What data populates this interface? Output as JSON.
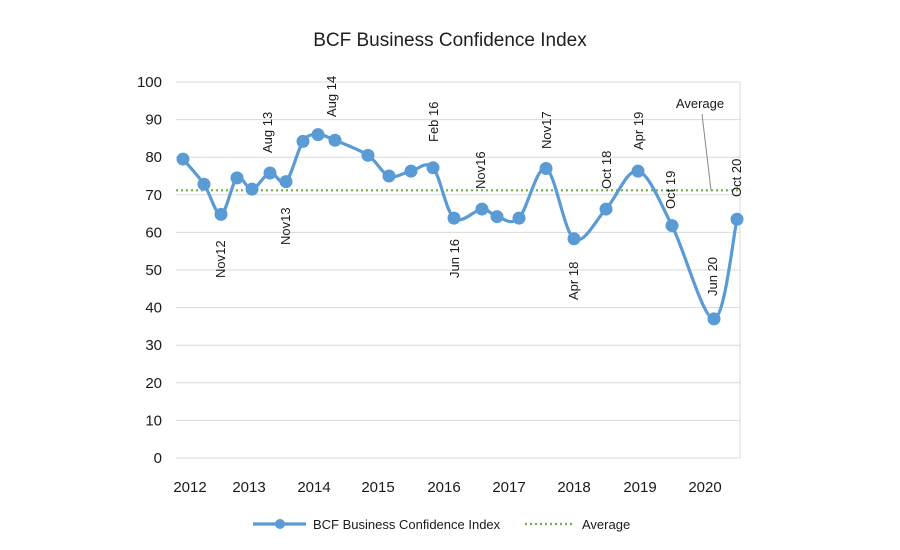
{
  "chart_data": {
    "type": "line",
    "title": "BCF Business Confidence Index",
    "xlabel": "",
    "ylabel": "",
    "ylim": [
      0,
      100
    ],
    "yticks": [
      0,
      10,
      20,
      30,
      40,
      50,
      60,
      70,
      80,
      90,
      100
    ],
    "xlim": [
      2012,
      2020.8
    ],
    "xticks": [
      "2012",
      "2013",
      "2014",
      "2015",
      "2016",
      "2017",
      "2018",
      "2019",
      "2020"
    ],
    "grid": true,
    "legend_position": "bottom",
    "series": [
      {
        "name": "BCF Business Confidence Index",
        "color": "#5b9bd5",
        "x": [
          2012.05,
          2012.4,
          2012.7,
          2012.95,
          2013.2,
          2013.45,
          2013.7,
          2013.95,
          2014.2,
          2014.5,
          2014.9,
          2015.25,
          2015.6,
          2015.95,
          2016.15,
          2016.5,
          2016.8,
          2017.15,
          2017.55,
          2017.95,
          2018.35,
          2018.8,
          2019.2,
          2019.55,
          2019.85,
          2020.15,
          2020.45,
          2020.8
        ],
        "y": [
          79.5,
          72.8,
          64.8,
          74.5,
          71.5,
          75.8,
          73.5,
          84.2,
          86,
          84.5,
          80.5,
          75,
          76.3,
          77.2,
          63.8,
          66.2,
          64.2,
          63.8,
          77,
          58.3,
          66.2,
          76.3,
          61.8,
          37,
          63.5,
          63.5,
          63.5,
          63.5
        ]
      },
      {
        "name": "Average",
        "color": "#70ad47",
        "style": "dotted",
        "value": 71.2
      }
    ],
    "annotations": [
      "Nov12",
      "Aug 13",
      "Nov13",
      "Aug 14",
      "Feb 16",
      "Jun 16",
      "Nov16",
      "Nov17",
      "Apr 18",
      "Oct 18",
      "Apr 19",
      "Oct 19",
      "Jun 20",
      "Oct 20",
      "Average"
    ]
  }
}
